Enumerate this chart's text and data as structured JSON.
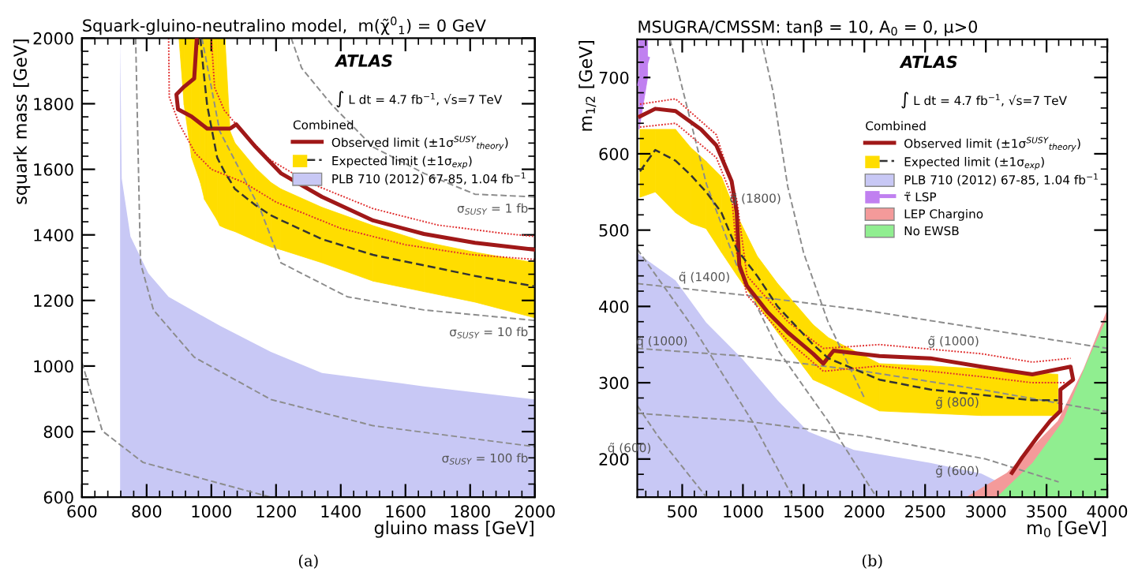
{
  "chart_data": [
    {
      "type": "line",
      "title": "Squark-gluino-neutralino model,  m(χ̃$^{0}$$_{1}$) = 0 GeV",
      "xlabel": "gluino mass [GeV]",
      "ylabel": "squark mass [GeV]",
      "legend_title": "Combined",
      "legend": "top right",
      "xlim": [
        600,
        2000
      ],
      "ylim": [
        600,
        2000
      ],
      "xticks": [
        600,
        800,
        1000,
        1200,
        1400,
        1600,
        1800,
        2000
      ],
      "yticks": [
        600,
        800,
        1000,
        1200,
        1400,
        1600,
        1800,
        2000
      ],
      "annotations": [
        "ATLAS",
        "∫ L dt = 4.7 fb$^{−1}$, √s=7 TeV",
        "(a)",
        {
          "text": "σ$_{SUSY}$ = 1 fb",
          "x": 2000,
          "y": 1516
        },
        {
          "text": "σ$_{SUSY}$ = 10 fb",
          "x": 2000,
          "y": 1139
        },
        {
          "text": "σ$_{SUSY}$ = 100 fb",
          "x": 2000,
          "y": 754
        }
      ],
      "series": [
        {
          "color": "#8c8c8c",
          "line_style": "dashed",
          "x": [
            1247,
            1279,
            1373,
            1500,
            1657,
            1815,
            2000
          ],
          "values": [
            2000,
            1909,
            1796,
            1668,
            1588,
            1524,
            1516
          ]
        },
        {
          "color": "#8c8c8c",
          "line_style": "dashed",
          "x": [
            971,
            1026,
            1152,
            1215,
            1421,
            1657,
            2000
          ],
          "values": [
            2000,
            1716,
            1476,
            1315,
            1211,
            1171,
            1139
          ]
        },
        {
          "color": "#8c8c8c",
          "line_style": "dashed",
          "x": [
            766,
            781,
            821,
            947,
            1184,
            1500,
            2000
          ],
          "values": [
            2000,
            1315,
            1171,
            1027,
            898,
            818,
            754
          ]
        },
        {
          "color": "#8c8c8c",
          "line_style": "dashed",
          "x": [
            600,
            663,
            789,
            1026,
            1184
          ],
          "values": [
            1011,
            802,
            706,
            642,
            600
          ]
        },
        {
          "color": "#e03030",
          "line_style": "dotted",
          "x": [
            1000,
            1010,
            1040,
            1100,
            1180,
            1300,
            1500,
            1700,
            1900,
            2000
          ],
          "values": [
            2000,
            1850,
            1780,
            1710,
            1630,
            1560,
            1480,
            1430,
            1405,
            1395
          ]
        },
        {
          "color": "#e03030",
          "line_style": "dotted",
          "x": [
            868,
            870,
            900,
            950,
            1000,
            1050,
            1100,
            1200,
            1400,
            1600,
            1800,
            2000
          ],
          "values": [
            2000,
            1820,
            1740,
            1650,
            1600,
            1580,
            1560,
            1500,
            1420,
            1370,
            1340,
            1325
          ]
        },
        {
          "name": "Observed limit (±1σ$^{SUSY}$$_{theory}$)",
          "color": "#a01818",
          "line_style": "solid",
          "x": [
            955,
            947,
            916,
            892,
            897,
            939,
            987,
            1058,
            1077,
            1137,
            1215,
            1342,
            1500,
            1657,
            1815,
            2000
          ],
          "values": [
            2000,
            1877,
            1852,
            1828,
            1783,
            1761,
            1724,
            1724,
            1737,
            1668,
            1588,
            1516,
            1444,
            1403,
            1376,
            1355
          ]
        },
        {
          "name": "Expected limit (±1σ$_{exp}$)",
          "color": "#333333",
          "colors": [
            "#ffdd00",
            "#ffdd00",
            "#ffdd00",
            "#ffdd00",
            "#ffdd00",
            "#ffdd00",
            "#ffdd00",
            "#ffdd00",
            "#ffdd00",
            "#ffdd00",
            "#ffdd00",
            "#ffdd00",
            "#ffdd00",
            "#ffdd00",
            "#ffdd00",
            "#ffdd00",
            "#ffdd00",
            "#ffdd00",
            "#ffdd00"
          ],
          "line_style": "dashed",
          "x": [
            900,
            916,
            939,
            966,
            979,
            987,
            1018,
            1026,
            1042,
            1058,
            1073,
            1137,
            1184,
            1215,
            1342,
            1500,
            1657,
            1815,
            2000
          ],
          "values": [
            null,
            null,
            null,
            2000,
            1870,
            1796,
            1636,
            1620,
            1590,
            1565,
            1540,
            1490,
            1460,
            1445,
            1387,
            1339,
            1307,
            1275,
            1243
          ],
          "lower": [
            2000,
            1796,
            1636,
            1560,
            1508,
            1495,
            1445,
            1428,
            1421,
            1415,
            1410,
            1382,
            1363,
            1355,
            1315,
            1259,
            1227,
            1195,
            1147
          ],
          "upper": [
            2000,
            2000,
            2000,
            2000,
            2000,
            2000,
            2000,
            2000,
            2000,
            1716,
            1680,
            1604,
            1560,
            1540,
            1484,
            1428,
            1379,
            1347,
            1315
          ]
        },
        {
          "type": "area",
          "name": "PLB 710 (2012) 67-85, 1.04 fb$^{−1}$",
          "color": "#c8c8f5",
          "x": [
            718,
            723,
            750,
            805,
            868,
            1026,
            1184,
            1342,
            1657,
            2000
          ],
          "values": [
            2000,
            1572,
            1395,
            1283,
            1211,
            1123,
            1043,
            979,
            938,
            898
          ]
        }
      ]
    },
    {
      "type": "line",
      "title": "MSUGRA/CMSSM: tanβ = 10, A$_{0}$ = 0, μ>0",
      "xlabel": "m$_{0}$ [GeV]",
      "ylabel": "m$_{1/2}$ [GeV]",
      "legend_title": "Combined",
      "legend": "top right",
      "xlim": [
        130,
        4000
      ],
      "ylim": [
        150,
        750
      ],
      "xticks": [
        500,
        1000,
        1500,
        2000,
        2500,
        3000,
        3500,
        4000
      ],
      "yticks": [
        200,
        300,
        400,
        500,
        600,
        700
      ],
      "annotations": [
        "ATLAS",
        "∫ L dt = 4.7 fb$^{−1}$, √s=7 TeV",
        "(b)",
        {
          "text": "g̃ (1000)",
          "x": 3000,
          "y": 370
        },
        {
          "text": "g̃ (800)",
          "x": 3000,
          "y": 290
        },
        {
          "text": "g̃ (600)",
          "x": 3000,
          "y": 200
        },
        {
          "text": "q̃ (600)",
          "x": 300,
          "y": 230
        },
        {
          "text": "q̃ (1000)",
          "x": 600,
          "y": 370
        },
        {
          "text": "q̃ (1400)",
          "x": 949,
          "y": 454
        },
        {
          "text": "q̃ (1800)",
          "x": 1369,
          "y": 557
        }
      ],
      "series": [
        {
          "color": "#8c8c8c",
          "line_style": "dashed",
          "x": [
            130,
            1000,
            2000,
            3000,
            4000
          ],
          "values": [
            430,
            415,
            395,
            370,
            345
          ]
        },
        {
          "color": "#8c8c8c",
          "line_style": "dashed",
          "x": [
            130,
            1000,
            2000,
            3000,
            4000
          ],
          "values": [
            345,
            335,
            315,
            290,
            262
          ]
        },
        {
          "color": "#8c8c8c",
          "line_style": "dashed",
          "x": [
            130,
            1000,
            2000,
            3000,
            3600
          ],
          "values": [
            260,
            250,
            230,
            200,
            170
          ]
        },
        {
          "color": "#8c8c8c",
          "line_style": "dashed",
          "x": [
            130,
            300,
            500,
            700
          ],
          "values": [
            270,
            230,
            190,
            150
          ]
        },
        {
          "color": "#8c8c8c",
          "line_style": "dashed",
          "x": [
            130,
            600,
            1075,
            1410
          ],
          "values": [
            475,
            370,
            250,
            150
          ]
        },
        {
          "color": "#8c8c8c",
          "line_style": "dashed",
          "x": [
            400,
            700,
            949,
            1300,
            1700,
            2100
          ],
          "values": [
            750,
            560,
            454,
            340,
            250,
            150
          ]
        },
        {
          "color": "#8c8c8c",
          "line_style": "dashed",
          "x": [
            1150,
            1250,
            1369,
            1500,
            1700,
            2000
          ],
          "values": [
            750,
            680,
            557,
            470,
            380,
            280
          ]
        },
        {
          "color": "#e03030",
          "line_style": "dotted",
          "x": [
            152,
            445,
            781,
            949,
            1033,
            1369,
            1662,
            2124,
            2963,
            3383,
            3698
          ],
          "values": [
            665,
            672,
            625,
            540,
            440,
            380,
            345,
            350,
            338,
            327,
            332
          ]
        },
        {
          "color": "#e03030",
          "line_style": "dotted",
          "x": [
            152,
            445,
            781,
            907,
            949,
            1033,
            1369,
            1662,
            2124,
            2963,
            3383,
            3650
          ],
          "values": [
            635,
            640,
            595,
            545,
            470,
            415,
            355,
            315,
            322,
            308,
            300,
            300
          ]
        },
        {
          "name": "Observed limit (±1σ$^{SUSY}$$_{theory}$)",
          "color": "#a01818",
          "line_style": "solid",
          "x": [
            152,
            278,
            445,
            655,
            781,
            907,
            949,
            970,
            1033,
            1201,
            1369,
            1578,
            1662,
            1746,
            2124,
            2544,
            2963,
            3383,
            3698,
            3719,
            3614,
            3614,
            3530,
            3425,
            3299,
            3215
          ],
          "values": [
            649,
            659,
            656,
            632,
            611,
            564,
            523,
            454,
            427,
            393,
            366,
            338,
            325,
            342,
            335,
            332,
            321,
            311,
            321,
            304,
            291,
            263,
            250,
            229,
            202,
            182
          ]
        },
        {
          "name": "Expected limit (±1σ$_{exp}$)",
          "color": "#333333",
          "colors": [
            "#ffdd00",
            "#ffdd00",
            "#ffdd00",
            "#ffdd00",
            "#ffdd00",
            "#ffdd00",
            "#ffdd00",
            "#ffdd00",
            "#ffdd00",
            "#ffdd00",
            "#ffdd00",
            "#ffdd00",
            "#ffdd00",
            "#ffdd00",
            "#ffdd00",
            "#ffdd00"
          ],
          "line_style": "dashed",
          "x": [
            152,
            278,
            445,
            571,
            697,
            823,
            949,
            1117,
            1285,
            1578,
            1704,
            2124,
            2544,
            2963,
            3383,
            3593
          ],
          "values": [
            577,
            605,
            591,
            572,
            550,
            523,
            475,
            440,
            400,
            350,
            332,
            304,
            291,
            284,
            277,
            277
          ],
          "lower": [
            543,
            550,
            523,
            509,
            502,
            471,
            441,
            403,
            366,
            304,
            295,
            263,
            260,
            257,
            257,
            257
          ],
          "upper": [
            632,
            632,
            632,
            608,
            590,
            570,
            520,
            466,
            430,
            376,
            359,
            325,
            322,
            318,
            313,
            311
          ]
        },
        {
          "type": "area",
          "name": "PLB 710 (2012) 67-85, 1.04 fb$^{−1}$",
          "color": "#c8c8f5",
          "x": [
            130,
            445,
            697,
            991,
            1285,
            1537,
            1914,
            2544,
            2963,
            3089,
            3150
          ],
          "values": [
            470,
            434,
            379,
            332,
            277,
            236,
            212,
            195,
            181,
            171,
            150
          ]
        },
        {
          "name": "τ̃ LSP",
          "color": "#c080f0",
          "colors": [
            "#c080f0",
            "#c080f0"
          ],
          "line_style": "solid",
          "x": [
            145,
            215
          ],
          "values": [
            691,
            725
          ],
          "lower": [
            632,
            700
          ],
          "upper": [
            750,
            750
          ]
        },
        {
          "type": "area",
          "name": "LEP Chargino",
          "color": "#f49a9a",
          "x": [
            2837,
            3173,
            3593,
            3803,
            4000
          ],
          "values": [
            150,
            182,
            250,
            318,
            396
          ]
        },
        {
          "type": "area",
          "name": "No EWSB",
          "color": "#90ee90",
          "x": [
            3089,
            3383,
            3635,
            3845,
            4000
          ],
          "values": [
            150,
            195,
            250,
            332,
            386
          ]
        }
      ]
    }
  ]
}
